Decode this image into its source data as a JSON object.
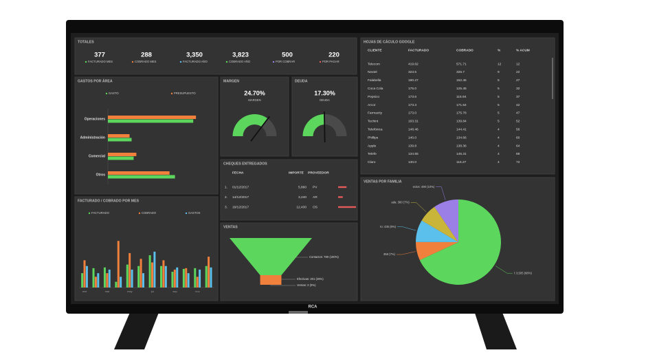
{
  "brand": "RCA",
  "totales": {
    "title": "TOTALES",
    "items": [
      {
        "value": "377",
        "label": "FACTURADO MES",
        "color": "#5cd65c"
      },
      {
        "value": "288",
        "label": "COBRADO MES",
        "color": "#f0803c"
      },
      {
        "value": "3,350",
        "label": "FACTURADO AÑO",
        "color": "#5bc0eb"
      },
      {
        "value": "3,823",
        "label": "COBRADO AÑO",
        "color": "#5cd65c"
      },
      {
        "value": "500",
        "label": "POR COBRAR",
        "color": "#9b7fe6"
      },
      {
        "value": "220",
        "label": "POR PAGAR",
        "color": "#e35a5a"
      }
    ]
  },
  "chart_data": [
    {
      "type": "hbar",
      "title": "GASTOS POR ÁREA",
      "categories": [
        "Operaciones",
        "Administración",
        "Comercial",
        "Otros"
      ],
      "series": [
        {
          "name": "GASTO",
          "color": "#5cd65c",
          "values": [
            126,
            35,
            38,
            99
          ]
        },
        {
          "name": "PRESUPUESTO",
          "color": "#f0803c",
          "values": [
            130,
            32,
            42,
            91
          ]
        }
      ],
      "xlim": [
        0,
        140
      ]
    },
    {
      "type": "bar",
      "title": "FACTURADO / COBRADO POR MES",
      "categories": [
        "ene",
        null,
        "mar",
        null,
        "may",
        null,
        "jul",
        null,
        "sep",
        null,
        "nov",
        null
      ],
      "series": [
        {
          "name": "FACTURADO",
          "color": "#5cd65c",
          "values": [
            20,
            27,
            28,
            8,
            32,
            30,
            45,
            30,
            22,
            26,
            27,
            30
          ]
        },
        {
          "name": "COBRADO",
          "color": "#f0803c",
          "values": [
            38,
            15,
            20,
            65,
            48,
            40,
            35,
            38,
            25,
            27,
            15,
            43
          ]
        },
        {
          "name": "GASTOS",
          "color": "#5bc0eb",
          "values": [
            30,
            20,
            25,
            15,
            25,
            20,
            50,
            30,
            28,
            20,
            25,
            28
          ]
        }
      ],
      "ylim": [
        0,
        70
      ]
    },
    {
      "type": "gauge",
      "title": "MARGEN",
      "value": 24.7,
      "value_label": "24.70%",
      "label": "MARGEN",
      "ylim": [
        0,
        35
      ],
      "color": "#5cd65c"
    },
    {
      "type": "gauge",
      "title": "DEUDA",
      "value": 17.3,
      "value_label": "17.30%",
      "label": "DEUDA",
      "ylim": [
        0,
        35
      ],
      "color": "#5cd65c"
    },
    {
      "type": "funnel",
      "title": "VENTAS",
      "values": [
        780,
        201,
        2
      ],
      "value_labels": [
        "Contactos: 780 (100%)",
        "Efectivas: 201 (26%)",
        "Ventas: 2 (0%)"
      ],
      "colors": [
        "#5cd65c",
        "#f0803c",
        "#5bc0eb"
      ]
    },
    {
      "type": "pie",
      "title": "VENTAS POR FAMILIA",
      "values": [
        3505,
        358,
        435,
        360,
        490
      ],
      "value_labels": [
        "l: 3,505 (68%)",
        "358 (7%)",
        "to: 435 (8%)",
        "ada: 360 (7%)",
        "ectos: 490 (10%)"
      ],
      "colors": [
        "#5cd65c",
        "#f0803c",
        "#5bc0eb",
        "#c9b53a",
        "#9b7fe6"
      ]
    }
  ],
  "cheques": {
    "title": "CHEQUES ENTREGADOS",
    "headers": [
      "FECHA",
      "IMPORTE",
      "PROVEEDOR"
    ],
    "rows": [
      [
        "1.",
        "01/12/2017",
        {
          "value": 5860,
          "label": "5,860"
        },
        "PV"
      ],
      [
        "2.",
        "14/12/2017",
        {
          "value": 3240,
          "label": "3,240"
        },
        "AR"
      ],
      [
        "3.",
        "19/12/2017",
        {
          "value": 12430,
          "label": "12,430"
        },
        "OS"
      ]
    ]
  },
  "hojas": {
    "title": "HOJAS DE CÁCULO GOOGLE",
    "headers": [
      "CLIENTE",
      "FACTURADO",
      "COBRADO",
      "%",
      "% ACUM"
    ],
    "rows": [
      [
        "Telecom",
        "419.62",
        "571.71",
        "12",
        "12"
      ],
      [
        "Nextel",
        "323.5",
        "325.7",
        "9",
        "22"
      ],
      [
        "Falabella",
        "190.27",
        "152.45",
        "5",
        "27"
      ],
      [
        "Coca Cola",
        "175.0",
        "125.45",
        "5",
        "32"
      ],
      [
        "Pepsico",
        "173.6",
        "115.94",
        "5",
        "37"
      ],
      [
        "Arcor",
        "173.3",
        "171.64",
        "5",
        "42"
      ],
      [
        "Farmacity",
        "173.0",
        "175.78",
        "5",
        "47"
      ],
      [
        "Techint",
        "163.31",
        "139.84",
        "5",
        "52"
      ],
      [
        "Telefónica",
        "148.46",
        "144.41",
        "4",
        "56"
      ],
      [
        "Phillips",
        "140.0",
        "134.66",
        "4",
        "60"
      ],
      [
        "Apple",
        "139.8",
        "138.36",
        "4",
        "64"
      ],
      [
        "Telefe",
        "134.55",
        "145.31",
        "4",
        "68"
      ],
      [
        "Claro",
        "130.0",
        "116.27",
        "4",
        "72"
      ]
    ]
  }
}
